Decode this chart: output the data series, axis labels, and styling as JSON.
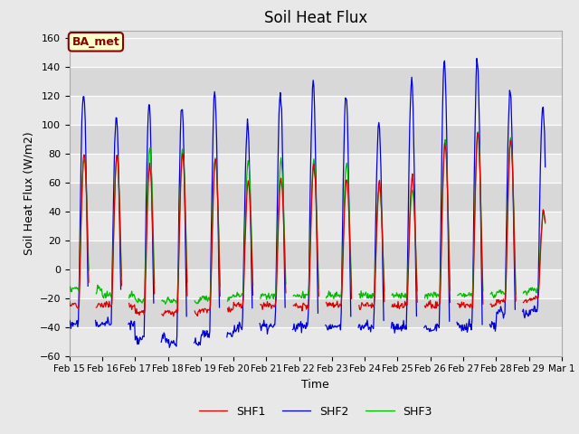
{
  "title": "Soil Heat Flux",
  "ylabel": "Soil Heat Flux (W/m2)",
  "xlabel": "Time",
  "ylim": [
    -60,
    165
  ],
  "yticks": [
    -60,
    -40,
    -20,
    0,
    20,
    40,
    60,
    80,
    100,
    120,
    140,
    160
  ],
  "colors": {
    "SHF1": "#dd0000",
    "SHF2": "#0000dd",
    "SHF3": "#00bb00"
  },
  "legend_label": "BA_met",
  "background_color": "#e8e8e8",
  "plot_bg_color": "#e0e0e0",
  "n_days": 14.5
}
